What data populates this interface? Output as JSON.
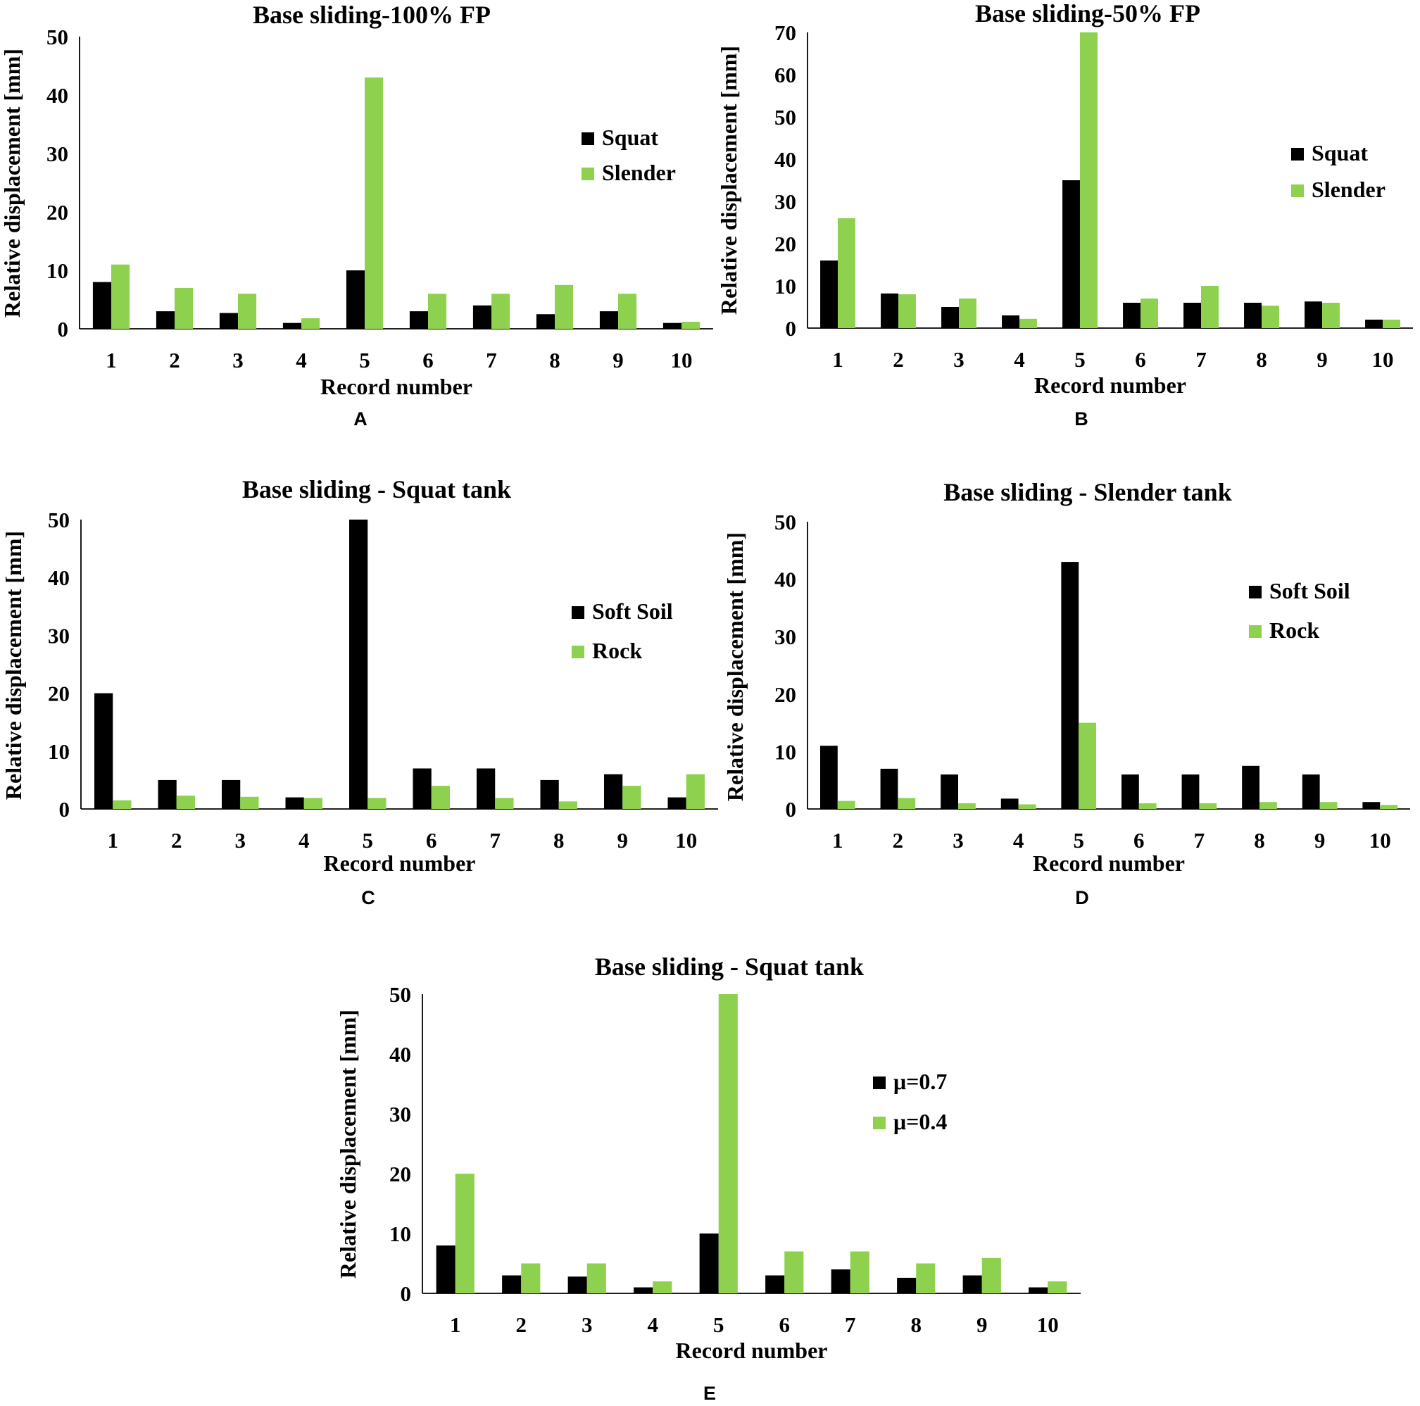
{
  "colors": {
    "black_series": "#000000",
    "green_series": "#8ed14f",
    "axis": "#000000"
  },
  "chart_data": [
    {
      "id": "A",
      "type": "bar",
      "panel_label": "A",
      "title": "Base sliding-100% FP",
      "xlabel": "Record number",
      "ylabel": "Relative displacement [mm]",
      "ylim": [
        0,
        50
      ],
      "yticks": [
        0,
        10,
        20,
        30,
        40,
        50
      ],
      "categories": [
        "1",
        "2",
        "3",
        "4",
        "5",
        "6",
        "7",
        "8",
        "9",
        "10"
      ],
      "legend_position": "right",
      "series": [
        {
          "name": "Squat",
          "color": "#000000",
          "values": [
            8,
            3,
            2.7,
            1,
            10,
            3,
            4,
            2.5,
            3,
            1
          ]
        },
        {
          "name": "Slender",
          "color": "#8ed14f",
          "values": [
            11,
            7,
            6,
            1.8,
            43,
            6,
            6,
            7.5,
            6,
            1.2
          ]
        }
      ]
    },
    {
      "id": "B",
      "type": "bar",
      "panel_label": "B",
      "title": "Base sliding-50% FP",
      "xlabel": "Record number",
      "ylabel": "Relative displacement [mm]",
      "ylim": [
        0,
        70
      ],
      "yticks": [
        0,
        10,
        20,
        30,
        40,
        50,
        60,
        70
      ],
      "categories": [
        "1",
        "2",
        "3",
        "4",
        "5",
        "6",
        "7",
        "8",
        "9",
        "10"
      ],
      "legend_position": "right",
      "series": [
        {
          "name": "Squat",
          "color": "#000000",
          "values": [
            16,
            8.2,
            5,
            3,
            35,
            6,
            6,
            6,
            6.3,
            2
          ]
        },
        {
          "name": "Slender",
          "color": "#8ed14f",
          "values": [
            26,
            8,
            7,
            2.2,
            70,
            7,
            10,
            5.3,
            6,
            2
          ]
        }
      ]
    },
    {
      "id": "C",
      "type": "bar",
      "panel_label": "C",
      "title": "Base sliding - Squat tank",
      "xlabel": "Record number",
      "ylabel": "Relative displacement [mm]",
      "ylim": [
        0,
        50
      ],
      "yticks": [
        0,
        10,
        20,
        30,
        40,
        50
      ],
      "categories": [
        "1",
        "2",
        "3",
        "4",
        "5",
        "6",
        "7",
        "8",
        "9",
        "10"
      ],
      "legend_position": "right",
      "series": [
        {
          "name": "Soft Soil",
          "color": "#000000",
          "values": [
            20,
            5,
            5,
            2,
            50,
            7,
            7,
            5,
            6,
            2
          ]
        },
        {
          "name": "Rock",
          "color": "#8ed14f",
          "values": [
            1.5,
            2.3,
            2.1,
            1.9,
            1.9,
            4,
            1.9,
            1.3,
            4,
            6
          ]
        }
      ]
    },
    {
      "id": "D",
      "type": "bar",
      "panel_label": "D",
      "title": "Base sliding - Slender tank",
      "xlabel": "Record number",
      "ylabel": "Relative displacement [mm]",
      "ylim": [
        0,
        50
      ],
      "yticks": [
        0,
        10,
        20,
        30,
        40,
        50
      ],
      "categories": [
        "1",
        "2",
        "3",
        "4",
        "5",
        "6",
        "7",
        "8",
        "9",
        "10"
      ],
      "legend_position": "right",
      "series": [
        {
          "name": "Soft Soil",
          "color": "#000000",
          "values": [
            11,
            7,
            6,
            1.8,
            43,
            6,
            6,
            7.5,
            6,
            1.2
          ]
        },
        {
          "name": "Rock",
          "color": "#8ed14f",
          "values": [
            1.4,
            1.9,
            1,
            0.8,
            15,
            1,
            1,
            1.2,
            1.2,
            0.7
          ]
        }
      ]
    },
    {
      "id": "E",
      "type": "bar",
      "panel_label": "E",
      "title": "Base sliding - Squat tank",
      "xlabel": "Record number",
      "ylabel": "Relative displacement [mm]",
      "ylim": [
        0,
        50
      ],
      "yticks": [
        0,
        10,
        20,
        30,
        40,
        50
      ],
      "categories": [
        "1",
        "2",
        "3",
        "4",
        "5",
        "6",
        "7",
        "8",
        "9",
        "10"
      ],
      "legend_position": "right",
      "series": [
        {
          "name": "μ=0.7",
          "color": "#000000",
          "values": [
            8,
            3,
            2.8,
            1,
            10,
            3,
            4,
            2.6,
            3,
            1
          ]
        },
        {
          "name": "μ=0.4",
          "color": "#8ed14f",
          "values": [
            20,
            5,
            5,
            2,
            50,
            7,
            7,
            5,
            5.9,
            2
          ]
        }
      ]
    }
  ]
}
